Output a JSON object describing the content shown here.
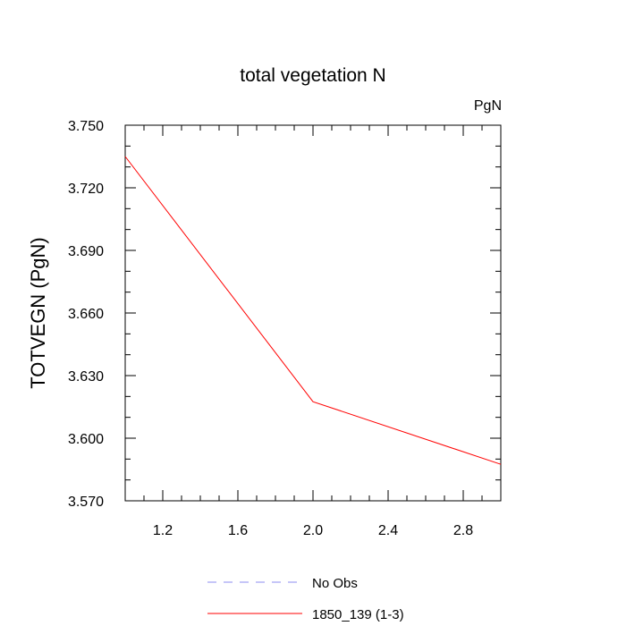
{
  "chart_data": {
    "type": "line",
    "title": "total vegetation N",
    "units": "PgN",
    "xlabel": "",
    "ylabel": "TOTVEGN  (PgN)",
    "xlim": [
      1.0,
      3.0
    ],
    "ylim": [
      3.57,
      3.75
    ],
    "xticks": [
      1.2,
      1.6,
      2.0,
      2.4,
      2.8
    ],
    "xtick_labels": [
      "1.2",
      "1.6",
      "2.0",
      "2.4",
      "2.8"
    ],
    "yticks": [
      3.57,
      3.6,
      3.63,
      3.66,
      3.69,
      3.72,
      3.75
    ],
    "ytick_labels": [
      "3.570",
      "3.600",
      "3.630",
      "3.660",
      "3.690",
      "3.720",
      "3.750"
    ],
    "series": [
      {
        "name": "1850_139 (1-3)",
        "x": [
          1.0,
          2.0,
          3.0
        ],
        "y": [
          3.735,
          3.6175,
          3.5875
        ],
        "color": "#ff0000",
        "dash": "solid"
      }
    ],
    "legend": {
      "placement": "bottom",
      "entries": [
        {
          "label": "No Obs",
          "color": "#8c8cf0",
          "dash": "dashed"
        },
        {
          "label": "1850_139 (1-3)",
          "color": "#ff0000",
          "dash": "solid"
        }
      ]
    }
  }
}
